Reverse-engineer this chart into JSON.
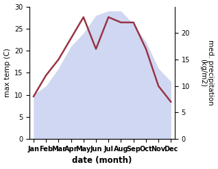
{
  "months": [
    "Jan",
    "Feb",
    "Mar",
    "Apr",
    "May",
    "Jun",
    "Jul",
    "Aug",
    "Sep",
    "Oct",
    "Nov",
    "Dec"
  ],
  "temperature": [
    10,
    12,
    16,
    21,
    24,
    28,
    29,
    29,
    26,
    22,
    16,
    13
  ],
  "precipitation": [
    8,
    12,
    15,
    19,
    23,
    17,
    23,
    22,
    22,
    17,
    10,
    7
  ],
  "precip_color": "#993344",
  "fill_color": "#c8d0f0",
  "ylim_temp": [
    0,
    30
  ],
  "ylim_precip": [
    0,
    25
  ],
  "right_yticks": [
    0,
    5,
    10,
    15,
    20
  ],
  "left_yticks": [
    0,
    5,
    10,
    15,
    20,
    25,
    30
  ],
  "ylabel_left": "max temp (C)",
  "ylabel_right": "med. precipitation\n(kg/m2)",
  "xlabel": "date (month)"
}
